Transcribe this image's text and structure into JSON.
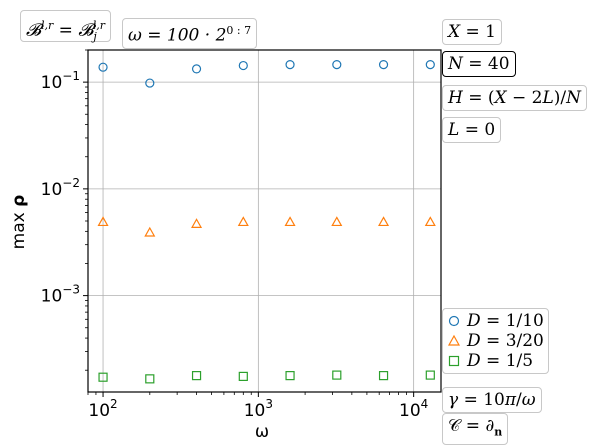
{
  "annotations": {
    "boundary": "B^{l,r} = B_j^{l,r}",
    "omega_range": "ω = 100 · 2^{0:7}",
    "X": "X = 1",
    "N": "N = 40",
    "H": "H = (X − 2L)/N",
    "L": "L = 0",
    "gamma": "γ = 10π/ω",
    "C": "C = ∂n"
  },
  "chart_data": {
    "type": "scatter",
    "xlabel": "ω",
    "ylabel": "max ρ",
    "xscale": "log",
    "yscale": "log",
    "xlim": [
      80,
      15000
    ],
    "ylim": [
      0.000125,
      0.2
    ],
    "xticks": [
      "10^2",
      "10^3",
      "10^4"
    ],
    "yticks": [
      "10^-3",
      "10^-2",
      "10^-1"
    ],
    "grid": true,
    "legend_position": "bottom-right, outside plot",
    "x": [
      100,
      200,
      400,
      800,
      1600,
      3200,
      6400,
      12800
    ],
    "series": [
      {
        "name": "D = 1/10",
        "marker": "circle",
        "color": "#1f77b4",
        "values": [
          0.138,
          0.098,
          0.133,
          0.143,
          0.146,
          0.146,
          0.146,
          0.146
        ]
      },
      {
        "name": "D = 3/20",
        "marker": "triangle",
        "color": "#ff7f0e",
        "values": [
          0.0049,
          0.0039,
          0.0047,
          0.0049,
          0.0049,
          0.0049,
          0.0049,
          0.0049
        ]
      },
      {
        "name": "D = 1/5",
        "marker": "square",
        "color": "#2ca02c",
        "values": [
          0.000172,
          0.000166,
          0.000178,
          0.000175,
          0.000178,
          0.00018,
          0.000178,
          0.00018
        ]
      }
    ]
  }
}
